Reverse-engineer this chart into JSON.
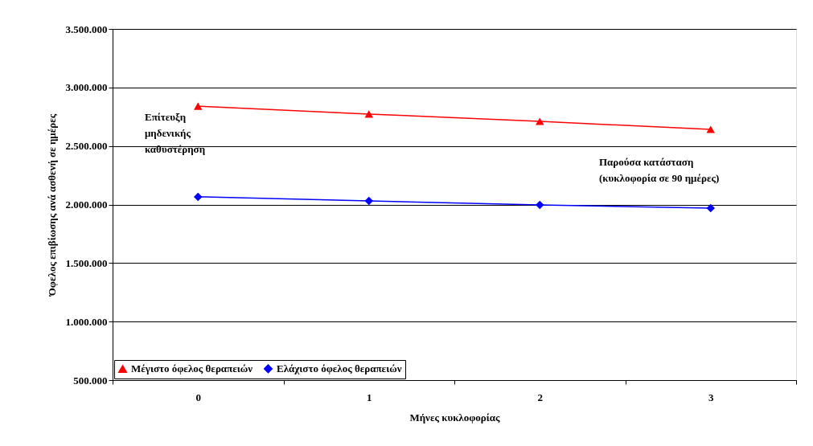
{
  "chart_data": {
    "type": "line",
    "xlabel": "Μήνες κυκλοφορίας",
    "ylabel": "Όφελος επιβίωσης ανά ασθενή σε ημέρες",
    "categories": [
      "0",
      "1",
      "2",
      "3"
    ],
    "series": [
      {
        "name": "Μέγιστο όφελος θεραπειών",
        "color": "#ff0000",
        "marker": "triangle",
        "values": [
          2840000,
          2773000,
          2710000,
          2642000
        ]
      },
      {
        "name": "Ελάχιστο όφελος θεραπειών",
        "color": "#0000ff",
        "marker": "diamond",
        "values": [
          2066000,
          2031000,
          1997000,
          1969000
        ]
      }
    ],
    "ylim": [
      500000,
      3500000
    ],
    "yticks": [
      {
        "value": 500000,
        "label": "500.000"
      },
      {
        "value": 1000000,
        "label": "1.000.000"
      },
      {
        "value": 1500000,
        "label": "1.500.000"
      },
      {
        "value": 2000000,
        "label": "2.000.000"
      },
      {
        "value": 2500000,
        "label": "2.500.000"
      },
      {
        "value": 3000000,
        "label": "3.000.000"
      },
      {
        "value": 3500000,
        "label": "3.500.000"
      }
    ],
    "grid": "y",
    "legend": "bottom left",
    "line_style": "solid",
    "annotations": [
      "Επίτευξη\nμηδενικής\nκαθυστέρηση",
      "Παρούσα κατάσταση\n(κυκλοφορία σε 90 ημέρες)"
    ]
  }
}
